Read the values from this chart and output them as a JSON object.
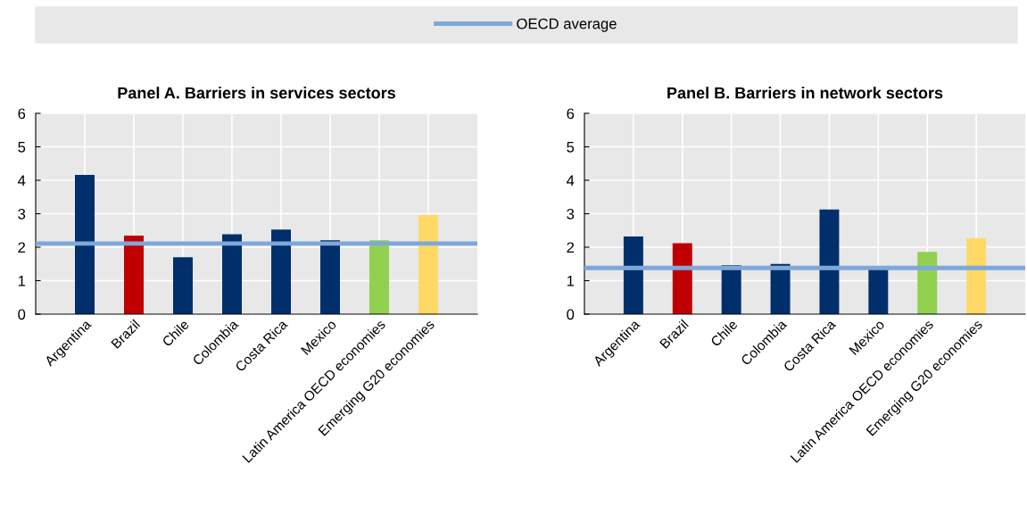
{
  "chart_data": [
    {
      "type": "bar",
      "title": "Panel A. Barriers in services sectors",
      "categories": [
        "Argentina",
        "Brazil",
        "Chile",
        "Colombia",
        "Costa Rica",
        "Mexico",
        "Latin America OECD economies",
        "Emerging G20 economies"
      ],
      "values": [
        4.16,
        2.35,
        1.7,
        2.39,
        2.53,
        2.21,
        2.21,
        2.96
      ],
      "colors": [
        "#002f6c",
        "#c00000",
        "#002f6c",
        "#002f6c",
        "#002f6c",
        "#002f6c",
        "#92d050",
        "#ffd966"
      ],
      "ylim": [
        0,
        6
      ],
      "yticks": [
        0,
        1,
        2,
        3,
        4,
        5,
        6
      ],
      "grid": true,
      "legend": "top",
      "ref_lines": [
        {
          "axis": "y",
          "value": 2.11,
          "label": "OECD average",
          "color": "#7fa8d9"
        }
      ]
    },
    {
      "type": "bar",
      "title": "Panel B. Barriers in network sectors",
      "categories": [
        "Argentina",
        "Brazil",
        "Chile",
        "Colombia",
        "Costa Rica",
        "Mexico",
        "Latin America OECD economies",
        "Emerging G20 economies"
      ],
      "values": [
        2.32,
        2.12,
        1.46,
        1.5,
        3.13,
        1.36,
        1.86,
        2.27
      ],
      "colors": [
        "#002f6c",
        "#c00000",
        "#002f6c",
        "#002f6c",
        "#002f6c",
        "#002f6c",
        "#92d050",
        "#ffd966"
      ],
      "ylim": [
        0,
        6
      ],
      "yticks": [
        0,
        1,
        2,
        3,
        4,
        5,
        6
      ],
      "grid": true,
      "ref_lines": [
        {
          "axis": "y",
          "value": 1.38,
          "color": "#7fa8d9"
        }
      ]
    }
  ]
}
